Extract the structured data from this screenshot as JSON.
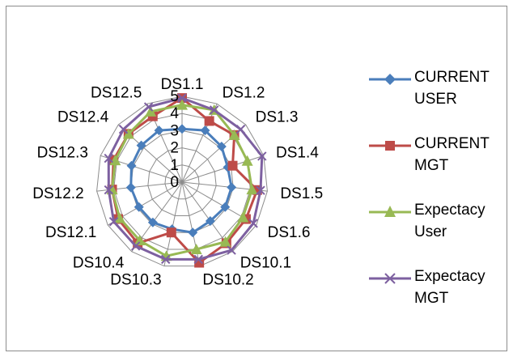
{
  "chart_data": {
    "type": "radar",
    "categories": [
      "DS1.1",
      "DS1.2",
      "DS1.3",
      "DS1.4",
      "DS1.5",
      "DS1.6",
      "DS10.1",
      "DS10.2",
      "DS10.3",
      "DS10.4",
      "DS12.1",
      "DS12.2",
      "DS12.3",
      "DS12.4",
      "DS12.5"
    ],
    "category_labels_visible": [
      "DS1.1",
      "DS1.2",
      "DS1.3",
      "DS1.4",
      "DS1.5",
      "DS1.6",
      "DS10.1",
      "DS10.2",
      "DS10.3",
      "DS10.4",
      "DS12.1",
      "DS12.2",
      "DS12.3",
      "DS12.4",
      "DS12.5"
    ],
    "tick_labels": [
      "0",
      "1",
      "2",
      "3",
      "4",
      "5"
    ],
    "rlim": [
      0,
      5
    ],
    "grid": true,
    "legend_position": "right",
    "series": [
      {
        "name": "CURRENT USER",
        "color": "#4a7ebb",
        "marker": "diamond",
        "values": [
          3.1,
          3.3,
          3.1,
          2.8,
          2.9,
          2.9,
          2.8,
          3.0,
          2.8,
          2.9,
          2.9,
          3.0,
          3.1,
          3.2,
          3.3
        ]
      },
      {
        "name": "CURRENT MGT",
        "color": "#be4b48",
        "marker": "square",
        "values": [
          4.9,
          3.9,
          4.1,
          3.1,
          4.4,
          4.3,
          4.4,
          4.8,
          3.0,
          4.4,
          4.3,
          4.1,
          4.2,
          4.2,
          4.2
        ]
      },
      {
        "name": "Expectacy User",
        "color": "#98b954",
        "marker": "triangle",
        "values": [
          4.5,
          4.6,
          4.1,
          4.0,
          4.1,
          4.1,
          4.3,
          4.0,
          4.4,
          4.2,
          4.2,
          4.1,
          4.1,
          4.2,
          4.5
        ]
      },
      {
        "name": "Expectacy MGT",
        "color": "#7d60a0",
        "marker": "x",
        "values": [
          4.9,
          4.6,
          4.6,
          4.9,
          4.6,
          4.8,
          4.9,
          4.6,
          4.6,
          4.6,
          4.6,
          4.3,
          4.5,
          4.6,
          4.8
        ]
      }
    ]
  },
  "legend": {
    "items": [
      {
        "label": "CURRENT USER"
      },
      {
        "label": "CURRENT MGT"
      },
      {
        "label": "Expectacy User"
      },
      {
        "label": "Expectacy MGT"
      }
    ]
  }
}
